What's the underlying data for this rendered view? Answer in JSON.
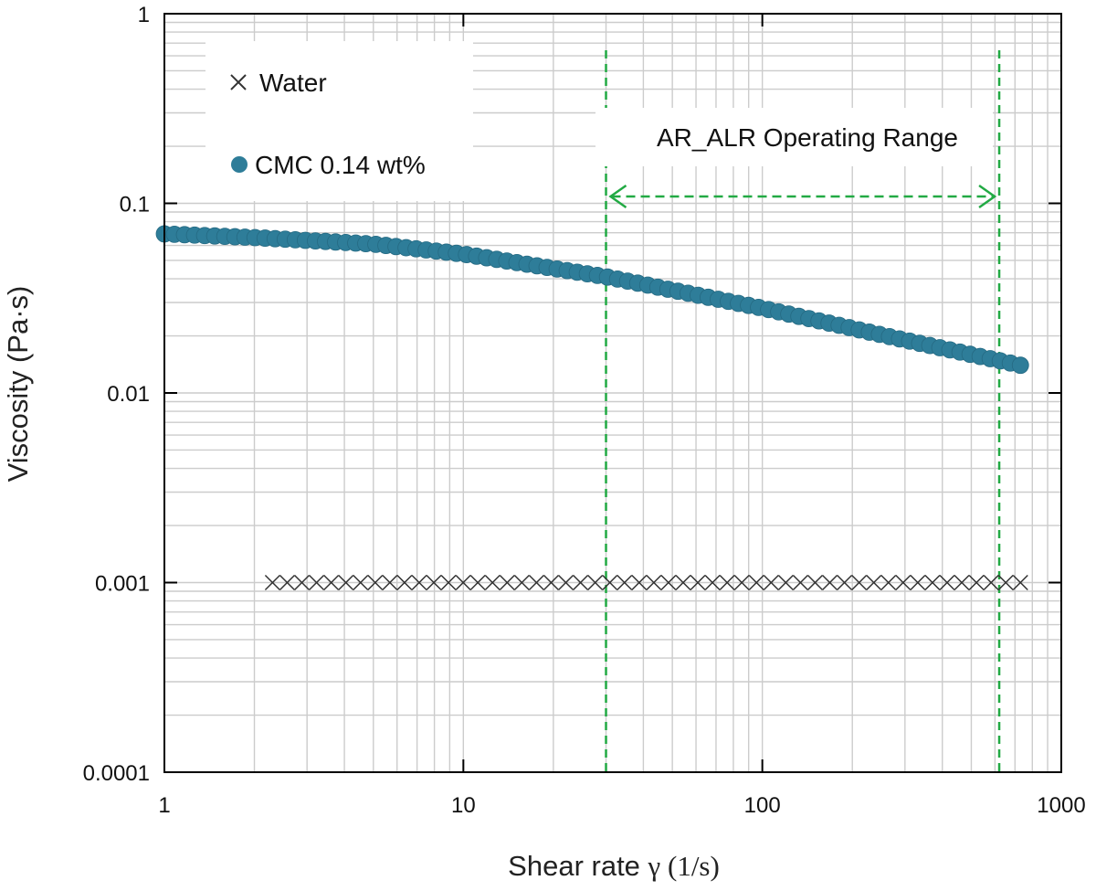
{
  "chart_data": {
    "type": "scatter",
    "x_scale": "log",
    "y_scale": "log",
    "xlim": [
      1,
      1000
    ],
    "ylim": [
      0.0001,
      1
    ],
    "grid": true,
    "legend_position": "top-left",
    "xlabel_text": "Shear rate ",
    "xlabel_symbol": "γ",
    "xlabel_unit": " (1/s)",
    "ylabel": "Viscosity (Pa·s)",
    "x_ticks": [
      {
        "value": 1,
        "label": "1"
      },
      {
        "value": 10,
        "label": "10"
      },
      {
        "value": 100,
        "label": "100"
      },
      {
        "value": 1000,
        "label": "1000"
      }
    ],
    "y_ticks": [
      {
        "value": 1,
        "label": "1"
      },
      {
        "value": 0.1,
        "label": "0.1"
      },
      {
        "value": 0.01,
        "label": "0.01"
      },
      {
        "value": 0.001,
        "label": "0.001"
      },
      {
        "value": 0.0001,
        "label": "0.0001"
      }
    ],
    "series": [
      {
        "name": "Water",
        "marker": "x",
        "color": "#333333",
        "x_range": [
          2.3,
          730
        ],
        "n_points": 52,
        "y_constant": 0.001
      },
      {
        "name": "CMC 0.14 wt%",
        "marker": "circle",
        "color": "#2e7d99",
        "x_range": [
          1,
          730
        ],
        "n_points": 86,
        "anchors": [
          {
            "x": 1,
            "y": 0.069
          },
          {
            "x": 2,
            "y": 0.066
          },
          {
            "x": 5,
            "y": 0.061
          },
          {
            "x": 10,
            "y": 0.054
          },
          {
            "x": 30,
            "y": 0.041
          },
          {
            "x": 100,
            "y": 0.028
          },
          {
            "x": 300,
            "y": 0.019
          },
          {
            "x": 730,
            "y": 0.014
          }
        ]
      }
    ],
    "annotations": {
      "range_label": "AR_ALR Operating Range",
      "range_x": [
        30,
        620
      ],
      "color": "#22aa44"
    }
  }
}
